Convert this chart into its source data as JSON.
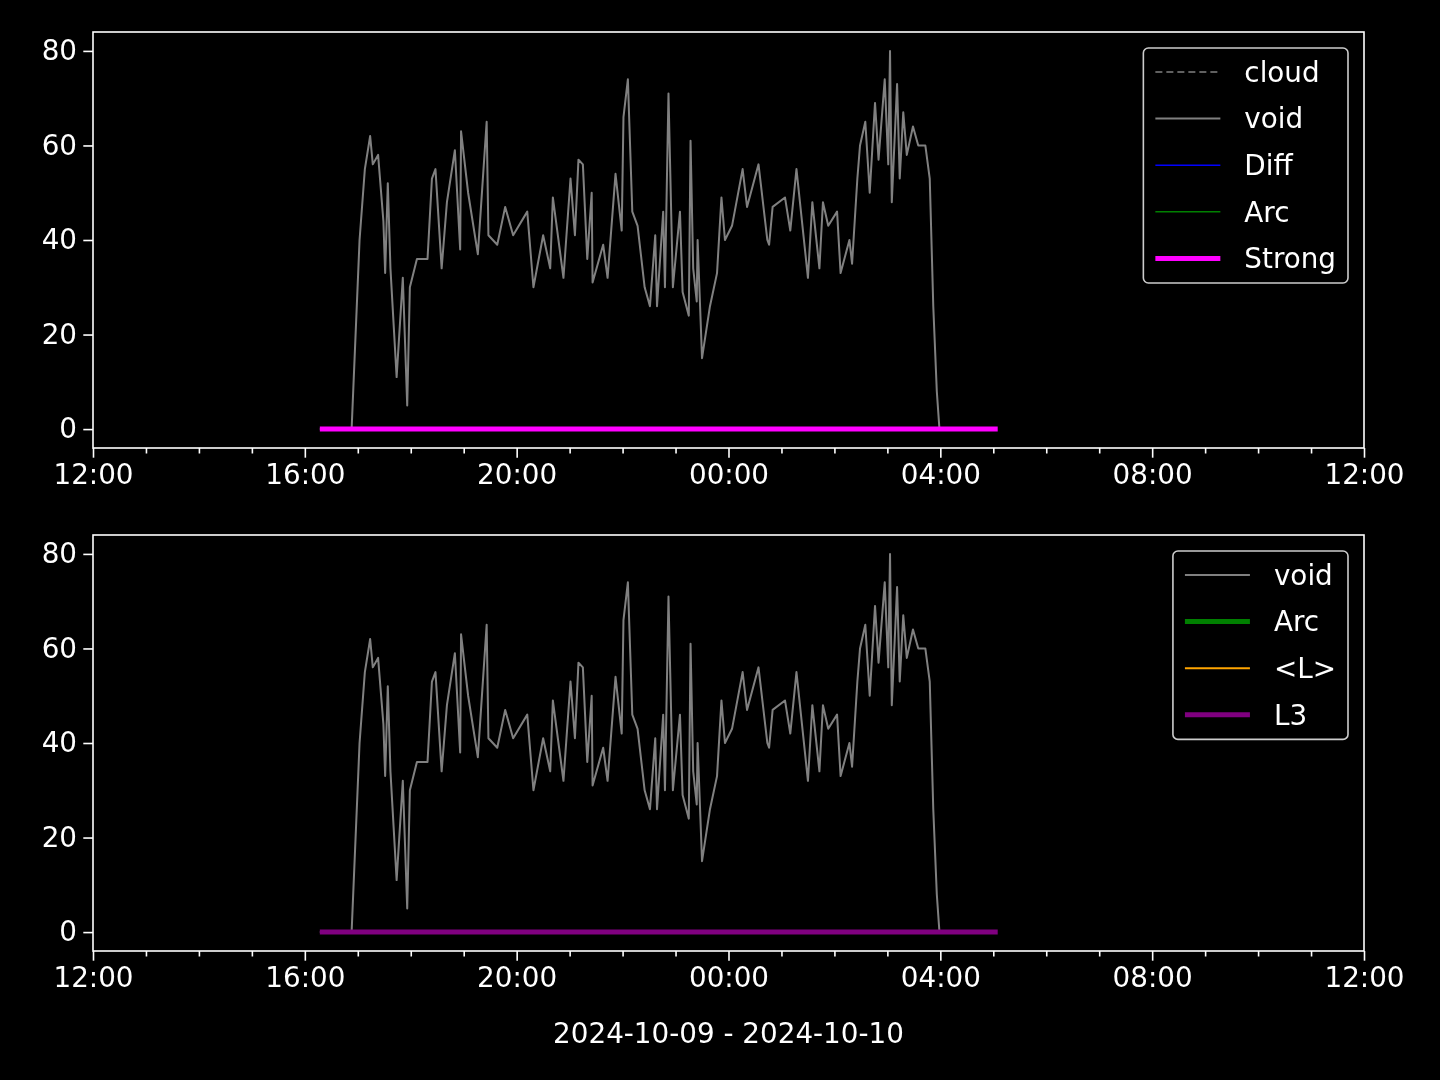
{
  "chart_data": [
    {
      "type": "line",
      "legend": "top right",
      "xlim": [
        "2024-10-09T12:00",
        "2024-10-10T12:00"
      ],
      "ylim": [
        -4,
        84
      ],
      "yticks": [
        0,
        20,
        40,
        60,
        80
      ],
      "xticks": [
        {
          "value": "2024-10-09T12:00",
          "label": "12:00"
        },
        {
          "value": "2024-10-09T13:00",
          "label": null
        },
        {
          "value": "2024-10-09T14:00",
          "label": null
        },
        {
          "value": "2024-10-09T15:00",
          "label": null
        },
        {
          "value": "2024-10-09T16:00",
          "label": "16:00"
        },
        {
          "value": "2024-10-09T17:00",
          "label": null
        },
        {
          "value": "2024-10-09T18:00",
          "label": null
        },
        {
          "value": "2024-10-09T19:00",
          "label": null
        },
        {
          "value": "2024-10-09T20:00",
          "label": "20:00"
        },
        {
          "value": "2024-10-09T21:00",
          "label": null
        },
        {
          "value": "2024-10-09T22:00",
          "label": null
        },
        {
          "value": "2024-10-09T23:00",
          "label": null
        },
        {
          "value": "2024-10-10T00:00",
          "label": "00:00"
        },
        {
          "value": "2024-10-10T01:00",
          "label": null
        },
        {
          "value": "2024-10-10T02:00",
          "label": null
        },
        {
          "value": "2024-10-10T03:00",
          "label": null
        },
        {
          "value": "2024-10-10T04:00",
          "label": "04:00"
        },
        {
          "value": "2024-10-10T05:00",
          "label": null
        },
        {
          "value": "2024-10-10T06:00",
          "label": null
        },
        {
          "value": "2024-10-10T07:00",
          "label": null
        },
        {
          "value": "2024-10-10T08:00",
          "label": "08:00"
        },
        {
          "value": "2024-10-10T09:00",
          "label": null
        },
        {
          "value": "2024-10-10T10:00",
          "label": null
        },
        {
          "value": "2024-10-10T11:00",
          "label": null
        },
        {
          "value": "2024-10-10T12:00",
          "label": "12:00"
        }
      ],
      "series": [
        {
          "name": "cloud",
          "color": "#808080",
          "line_style": "dashed"
        },
        {
          "name": "void",
          "color": "#808080",
          "x": [
            "2024-10-09T16:17",
            "2024-10-09T16:53",
            "2024-10-09T17:02",
            "2024-10-09T17:08",
            "2024-10-09T17:14",
            "2024-10-09T17:17",
            "2024-10-09T17:23",
            "2024-10-09T17:29",
            "2024-10-09T17:31",
            "2024-10-09T17:34",
            "2024-10-09T17:37",
            "2024-10-09T17:44",
            "2024-10-09T17:51",
            "2024-10-09T17:56",
            "2024-10-09T17:59",
            "2024-10-09T18:07",
            "2024-10-09T18:19",
            "2024-10-09T18:24",
            "2024-10-09T18:28",
            "2024-10-09T18:35",
            "2024-10-09T18:41",
            "2024-10-09T18:50",
            "2024-10-09T18:56",
            "2024-10-09T18:57",
            "2024-10-09T19:05",
            "2024-10-09T19:16",
            "2024-10-09T19:26",
            "2024-10-09T19:28",
            "2024-10-09T19:38",
            "2024-10-09T19:47",
            "2024-10-09T19:56",
            "2024-10-09T20:12",
            "2024-10-09T20:19",
            "2024-10-09T20:30",
            "2024-10-09T20:38",
            "2024-10-09T20:41",
            "2024-10-09T20:53",
            "2024-10-09T21:01",
            "2024-10-09T21:06",
            "2024-10-09T21:10",
            "2024-10-09T21:15",
            "2024-10-09T21:20",
            "2024-10-09T21:25",
            "2024-10-09T21:26",
            "2024-10-09T21:38",
            "2024-10-09T21:43",
            "2024-10-09T21:52",
            "2024-10-09T21:59",
            "2024-10-09T22:01",
            "2024-10-09T22:06",
            "2024-10-09T22:11",
            "2024-10-09T22:17",
            "2024-10-09T22:25",
            "2024-10-09T22:31",
            "2024-10-09T22:37",
            "2024-10-09T22:39",
            "2024-10-09T22:46",
            "2024-10-09T22:48",
            "2024-10-09T22:52",
            "2024-10-09T22:57",
            "2024-10-09T23:05",
            "2024-10-09T23:08",
            "2024-10-09T23:15",
            "2024-10-09T23:17",
            "2024-10-09T23:20",
            "2024-10-09T23:24",
            "2024-10-09T23:25",
            "2024-10-09T23:30",
            "2024-10-09T23:39",
            "2024-10-09T23:47",
            "2024-10-09T23:52",
            "2024-10-09T23:56",
            "2024-10-10T00:04",
            "2024-10-10T00:16",
            "2024-10-10T00:21",
            "2024-10-10T00:34",
            "2024-10-10T00:44",
            "2024-10-10T00:46",
            "2024-10-10T00:50",
            "2024-10-10T01:04",
            "2024-10-10T01:10",
            "2024-10-10T01:17",
            "2024-10-10T01:30",
            "2024-10-10T01:35",
            "2024-10-10T01:43",
            "2024-10-10T01:47",
            "2024-10-10T01:53",
            "2024-10-10T02:03",
            "2024-10-10T02:07",
            "2024-10-10T02:17",
            "2024-10-10T02:20",
            "2024-10-10T02:26",
            "2024-10-10T02:29",
            "2024-10-10T02:35",
            "2024-10-10T02:40",
            "2024-10-10T02:46",
            "2024-10-10T02:50",
            "2024-10-10T02:57",
            "2024-10-10T03:01",
            "2024-10-10T03:03",
            "2024-10-10T03:05",
            "2024-10-10T03:11",
            "2024-10-10T03:14",
            "2024-10-10T03:18",
            "2024-10-10T03:22",
            "2024-10-10T03:29",
            "2024-10-10T03:35",
            "2024-10-10T03:43",
            "2024-10-10T03:48",
            "2024-10-10T03:52",
            "2024-10-10T03:56",
            "2024-10-10T03:59",
            "2024-10-10T05:03"
          ],
          "values": [
            0,
            0,
            40,
            55,
            62,
            56,
            58,
            44,
            33,
            52,
            34,
            11,
            32,
            5,
            30,
            36,
            36,
            53,
            55,
            34,
            48,
            59,
            38,
            63,
            50,
            37,
            65,
            41,
            39,
            47,
            41,
            46,
            30,
            41,
            34,
            49,
            32,
            53,
            41,
            57,
            56,
            36,
            50,
            31,
            39,
            32,
            54,
            42,
            66,
            74,
            46,
            43,
            30,
            26,
            41,
            26,
            46,
            30,
            71,
            30,
            46,
            29,
            24,
            61,
            34,
            27,
            40,
            15,
            26,
            33,
            49,
            40,
            43,
            55,
            47,
            56,
            40,
            39,
            47,
            49,
            42,
            55,
            32,
            48,
            34,
            48,
            43,
            46,
            33,
            40,
            35,
            53,
            60,
            65,
            50,
            69,
            57,
            74,
            56,
            80,
            48,
            73,
            53,
            67,
            58,
            64,
            60,
            60,
            53,
            26,
            8,
            0,
            0
          ]
        },
        {
          "name": "Diff",
          "color": "#0000ff"
        },
        {
          "name": "Arc",
          "color": "#008000"
        },
        {
          "name": "Strong",
          "color": "#ff00ff",
          "x": [
            "2024-10-09T16:17",
            "2024-10-10T05:05"
          ],
          "values": [
            0,
            0
          ]
        }
      ]
    },
    {
      "type": "line",
      "legend": "top right",
      "xlabel": "2024-10-09 - 2024-10-10",
      "xlim": [
        "2024-10-09T12:00",
        "2024-10-10T12:00"
      ],
      "ylim": [
        -4,
        84
      ],
      "yticks": [
        0,
        20,
        40,
        60,
        80
      ],
      "xticks": [
        {
          "value": "2024-10-09T12:00",
          "label": "12:00"
        },
        {
          "value": "2024-10-09T13:00",
          "label": null
        },
        {
          "value": "2024-10-09T14:00",
          "label": null
        },
        {
          "value": "2024-10-09T15:00",
          "label": null
        },
        {
          "value": "2024-10-09T16:00",
          "label": "16:00"
        },
        {
          "value": "2024-10-09T17:00",
          "label": null
        },
        {
          "value": "2024-10-09T18:00",
          "label": null
        },
        {
          "value": "2024-10-09T19:00",
          "label": null
        },
        {
          "value": "2024-10-09T20:00",
          "label": "20:00"
        },
        {
          "value": "2024-10-09T21:00",
          "label": null
        },
        {
          "value": "2024-10-09T22:00",
          "label": null
        },
        {
          "value": "2024-10-09T23:00",
          "label": null
        },
        {
          "value": "2024-10-10T00:00",
          "label": "00:00"
        },
        {
          "value": "2024-10-10T01:00",
          "label": null
        },
        {
          "value": "2024-10-10T02:00",
          "label": null
        },
        {
          "value": "2024-10-10T03:00",
          "label": null
        },
        {
          "value": "2024-10-10T04:00",
          "label": "04:00"
        },
        {
          "value": "2024-10-10T05:00",
          "label": null
        },
        {
          "value": "2024-10-10T06:00",
          "label": null
        },
        {
          "value": "2024-10-10T07:00",
          "label": null
        },
        {
          "value": "2024-10-10T08:00",
          "label": "08:00"
        },
        {
          "value": "2024-10-10T09:00",
          "label": null
        },
        {
          "value": "2024-10-10T10:00",
          "label": null
        },
        {
          "value": "2024-10-10T11:00",
          "label": null
        },
        {
          "value": "2024-10-10T12:00",
          "label": "12:00"
        }
      ],
      "series": [
        {
          "name": "void",
          "color": "#808080",
          "x": [
            "2024-10-09T16:17",
            "2024-10-09T16:53",
            "2024-10-09T17:02",
            "2024-10-09T17:08",
            "2024-10-09T17:14",
            "2024-10-09T17:17",
            "2024-10-09T17:23",
            "2024-10-09T17:29",
            "2024-10-09T17:31",
            "2024-10-09T17:34",
            "2024-10-09T17:37",
            "2024-10-09T17:44",
            "2024-10-09T17:51",
            "2024-10-09T17:56",
            "2024-10-09T17:59",
            "2024-10-09T18:07",
            "2024-10-09T18:19",
            "2024-10-09T18:24",
            "2024-10-09T18:28",
            "2024-10-09T18:35",
            "2024-10-09T18:41",
            "2024-10-09T18:50",
            "2024-10-09T18:56",
            "2024-10-09T18:57",
            "2024-10-09T19:05",
            "2024-10-09T19:16",
            "2024-10-09T19:26",
            "2024-10-09T19:28",
            "2024-10-09T19:38",
            "2024-10-09T19:47",
            "2024-10-09T19:56",
            "2024-10-09T20:12",
            "2024-10-09T20:19",
            "2024-10-09T20:30",
            "2024-10-09T20:38",
            "2024-10-09T20:41",
            "2024-10-09T20:53",
            "2024-10-09T21:01",
            "2024-10-09T21:06",
            "2024-10-09T21:10",
            "2024-10-09T21:15",
            "2024-10-09T21:20",
            "2024-10-09T21:25",
            "2024-10-09T21:26",
            "2024-10-09T21:38",
            "2024-10-09T21:43",
            "2024-10-09T21:52",
            "2024-10-09T21:59",
            "2024-10-09T22:01",
            "2024-10-09T22:06",
            "2024-10-09T22:11",
            "2024-10-09T22:17",
            "2024-10-09T22:25",
            "2024-10-09T22:31",
            "2024-10-09T22:37",
            "2024-10-09T22:39",
            "2024-10-09T22:46",
            "2024-10-09T22:48",
            "2024-10-09T22:52",
            "2024-10-09T22:57",
            "2024-10-09T23:05",
            "2024-10-09T23:08",
            "2024-10-09T23:15",
            "2024-10-09T23:17",
            "2024-10-09T23:20",
            "2024-10-09T23:24",
            "2024-10-09T23:25",
            "2024-10-09T23:30",
            "2024-10-09T23:39",
            "2024-10-09T23:47",
            "2024-10-09T23:52",
            "2024-10-09T23:56",
            "2024-10-10T00:04",
            "2024-10-10T00:16",
            "2024-10-10T00:21",
            "2024-10-10T00:34",
            "2024-10-10T00:44",
            "2024-10-10T00:46",
            "2024-10-10T00:50",
            "2024-10-10T01:04",
            "2024-10-10T01:10",
            "2024-10-10T01:17",
            "2024-10-10T01:30",
            "2024-10-10T01:35",
            "2024-10-10T01:43",
            "2024-10-10T01:47",
            "2024-10-10T01:53",
            "2024-10-10T02:03",
            "2024-10-10T02:07",
            "2024-10-10T02:17",
            "2024-10-10T02:20",
            "2024-10-10T02:26",
            "2024-10-10T02:29",
            "2024-10-10T02:35",
            "2024-10-10T02:40",
            "2024-10-10T02:46",
            "2024-10-10T02:50",
            "2024-10-10T02:57",
            "2024-10-10T03:01",
            "2024-10-10T03:03",
            "2024-10-10T03:05",
            "2024-10-10T03:11",
            "2024-10-10T03:14",
            "2024-10-10T03:18",
            "2024-10-10T03:22",
            "2024-10-10T03:29",
            "2024-10-10T03:35",
            "2024-10-10T03:43",
            "2024-10-10T03:48",
            "2024-10-10T03:52",
            "2024-10-10T03:56",
            "2024-10-10T03:59",
            "2024-10-10T05:03"
          ],
          "values": [
            0,
            0,
            40,
            55,
            62,
            56,
            58,
            44,
            33,
            52,
            34,
            11,
            32,
            5,
            30,
            36,
            36,
            53,
            55,
            34,
            48,
            59,
            38,
            63,
            50,
            37,
            65,
            41,
            39,
            47,
            41,
            46,
            30,
            41,
            34,
            49,
            32,
            53,
            41,
            57,
            56,
            36,
            50,
            31,
            39,
            32,
            54,
            42,
            66,
            74,
            46,
            43,
            30,
            26,
            41,
            26,
            46,
            30,
            71,
            30,
            46,
            29,
            24,
            61,
            34,
            27,
            40,
            15,
            26,
            33,
            49,
            40,
            43,
            55,
            47,
            56,
            40,
            39,
            47,
            49,
            42,
            55,
            32,
            48,
            34,
            48,
            43,
            46,
            33,
            40,
            35,
            53,
            60,
            65,
            50,
            69,
            57,
            74,
            56,
            80,
            48,
            73,
            53,
            67,
            58,
            64,
            60,
            60,
            53,
            26,
            8,
            0,
            0
          ]
        },
        {
          "name": "Arc",
          "color": "#008000"
        },
        {
          "name": "<L>",
          "color": "#ffa500"
        },
        {
          "name": "L3",
          "color": "#800080",
          "x": [
            "2024-10-09T16:17",
            "2024-10-10T05:05"
          ],
          "values": [
            0,
            0
          ]
        }
      ]
    }
  ]
}
